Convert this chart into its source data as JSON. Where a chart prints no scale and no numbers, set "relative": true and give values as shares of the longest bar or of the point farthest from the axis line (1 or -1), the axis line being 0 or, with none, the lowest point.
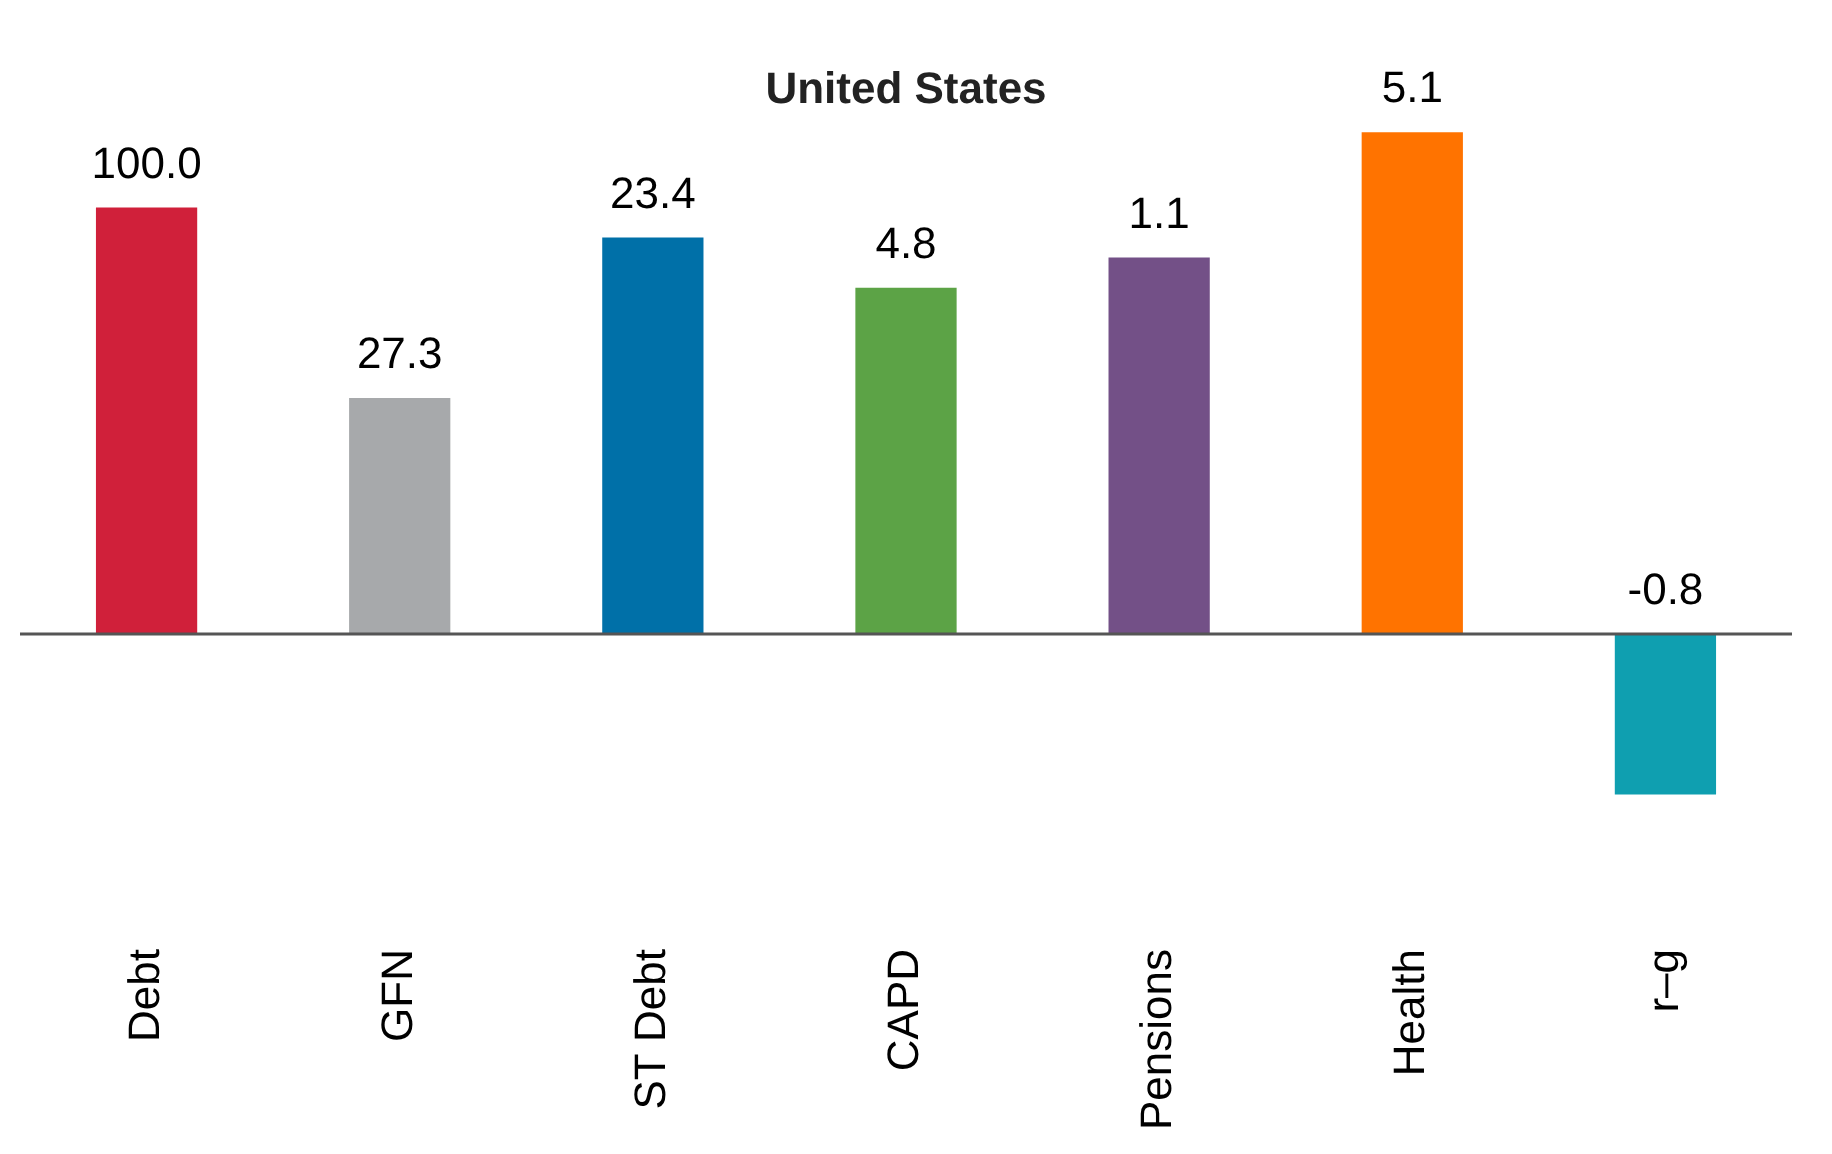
{
  "chart_data": {
    "type": "bar",
    "title": "United States",
    "relative": true,
    "categories": [
      "Debt",
      "GFN",
      "ST Debt",
      "CAPD",
      "Pensions",
      "Health",
      "r–g"
    ],
    "values": [
      0.85,
      0.47,
      0.79,
      0.69,
      0.75,
      1,
      -0.32
    ],
    "colors": [
      "#d0203a",
      "#a7a9ab",
      "#0070a8",
      "#5ca346",
      "#735087",
      "#ff7300",
      "#0f9fb0"
    ],
    "annotations": [
      {
        "text": "100.0",
        "x": "Debt",
        "y": 0.85
      },
      {
        "text": "27.3",
        "x": "GFN",
        "y": 0.47
      },
      {
        "text": "23.4",
        "x": "ST Debt",
        "y": 0.79
      },
      {
        "text": "4.8",
        "x": "CAPD",
        "y": 0.69
      },
      {
        "text": "1.1",
        "x": "Pensions",
        "y": 0.75
      },
      {
        "text": "5.1",
        "x": "Health",
        "y": 1
      },
      {
        "text": "-0.8",
        "x": "r–g",
        "y": 0
      }
    ],
    "grid": false,
    "legend": false
  }
}
